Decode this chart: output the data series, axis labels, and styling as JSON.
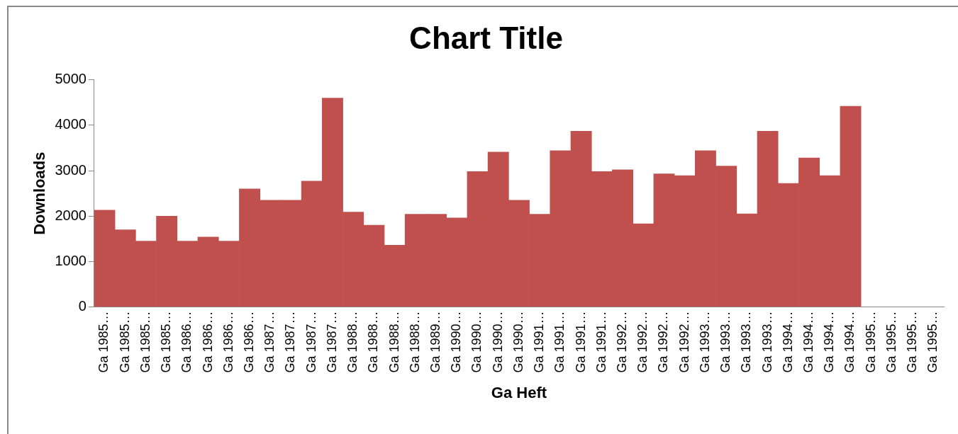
{
  "chart_data": {
    "type": "bar",
    "title": "Chart Title",
    "xlabel": "Ga Heft",
    "ylabel": "Downloads",
    "categories": [
      "Ga 1985…",
      "Ga 1985…",
      "Ga 1985…",
      "Ga 1985…",
      "Ga 1986…",
      "Ga 1986…",
      "Ga 1986…",
      "Ga 1986…",
      "Ga 1987…",
      "Ga 1987…",
      "Ga 1987…",
      "Ga 1987…",
      "Ga 1988…",
      "Ga 1988…",
      "Ga 1988…",
      "Ga 1988…",
      "Ga 1989…",
      "Ga 1990…",
      "Ga 1990…",
      "Ga 1990…",
      "Ga 1990…",
      "Ga 1991…",
      "Ga 1991…",
      "Ga 1991…",
      "Ga 1991…",
      "Ga 1992…",
      "Ga 1992…",
      "Ga 1992…",
      "Ga 1992…",
      "Ga 1993…",
      "Ga 1993…",
      "Ga 1993…",
      "Ga 1993…",
      "Ga 1994…",
      "Ga 1994…",
      "Ga 1994…",
      "Ga 1994…",
      "Ga 1995…",
      "Ga 1995…",
      "Ga 1995…",
      "Ga 1995…"
    ],
    "values": [
      2130,
      1700,
      1450,
      2000,
      1450,
      1540,
      1450,
      2600,
      2350,
      2350,
      2770,
      4600,
      2090,
      1800,
      1360,
      2040,
      2040,
      1960,
      2980,
      3410,
      2350,
      2040,
      3440,
      3870,
      2980,
      3020,
      1830,
      2930,
      2890,
      3440,
      3100,
      2050,
      3870,
      2720,
      3280,
      2890,
      4420,
      null,
      null,
      null,
      null
    ],
    "color": "#c0504d",
    "ylim": [
      0,
      5000
    ],
    "yticks": [
      0,
      1000,
      2000,
      3000,
      4000,
      5000
    ],
    "grid": false,
    "legend": false
  }
}
